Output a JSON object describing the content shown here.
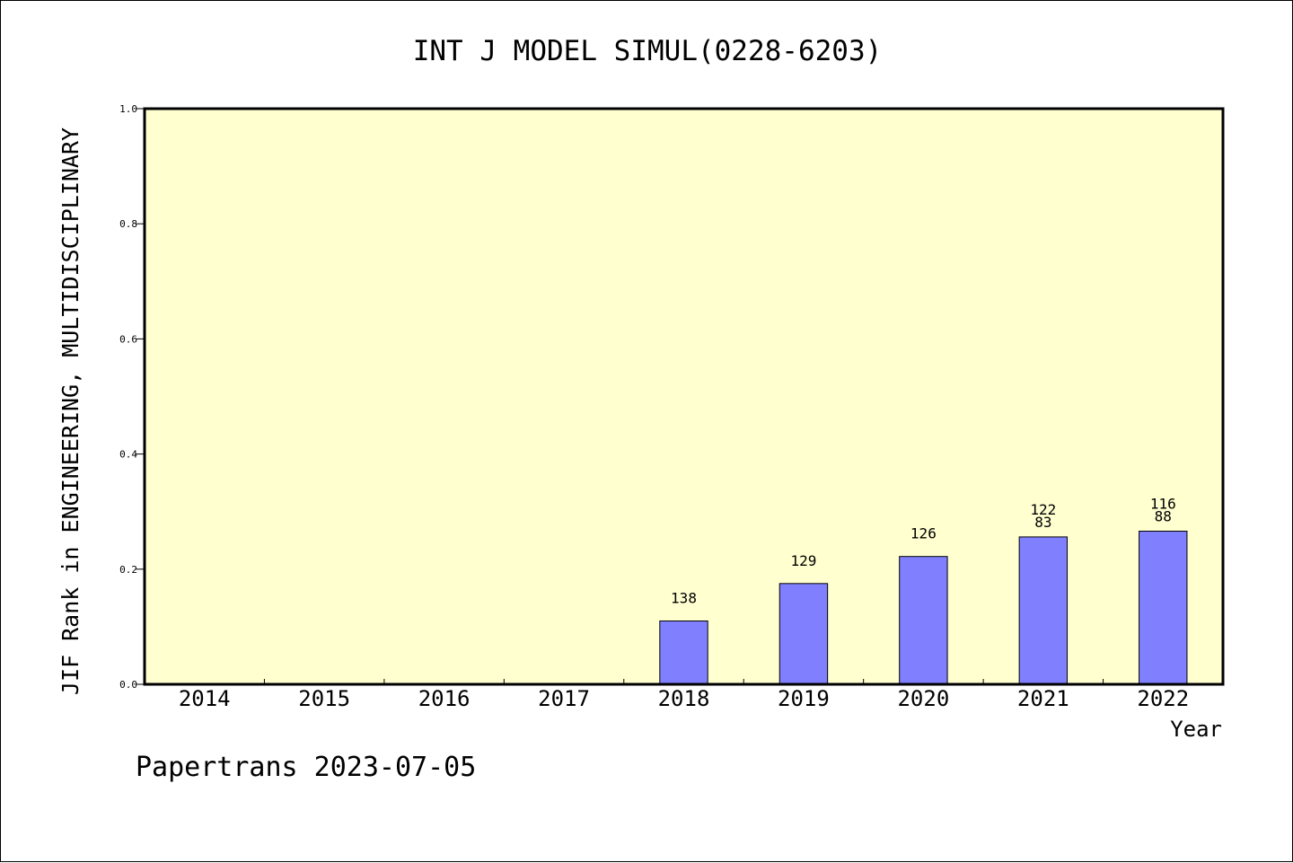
{
  "chart_data": {
    "type": "bar",
    "title": "INT J MODEL SIMUL(0228-6203)",
    "xlabel": "Year",
    "ylabel": "JIF Rank in ENGINEERING, MULTIDISCIPLINARY",
    "ylim": [
      0.0,
      1.0
    ],
    "yticks": [
      "0.0",
      "0.2",
      "0.4",
      "0.6",
      "0.8",
      "1.0"
    ],
    "categories": [
      "2014",
      "2015",
      "2016",
      "2017",
      "2018",
      "2019",
      "2020",
      "2021",
      "2022"
    ],
    "values": [
      null,
      null,
      null,
      null,
      0.11,
      0.175,
      0.222,
      0.256,
      0.266
    ],
    "annotations": [
      [],
      [],
      [],
      [],
      [
        "138"
      ],
      [
        "129"
      ],
      [
        "126"
      ],
      [
        "122",
        "83"
      ],
      [
        "116",
        "88"
      ]
    ],
    "grid": false,
    "colors": {
      "plot_background": "#ffffd0",
      "bar_fill": "#8080ff",
      "bar_stroke": "#000000"
    }
  },
  "footer": "Papertrans 2023-07-05"
}
